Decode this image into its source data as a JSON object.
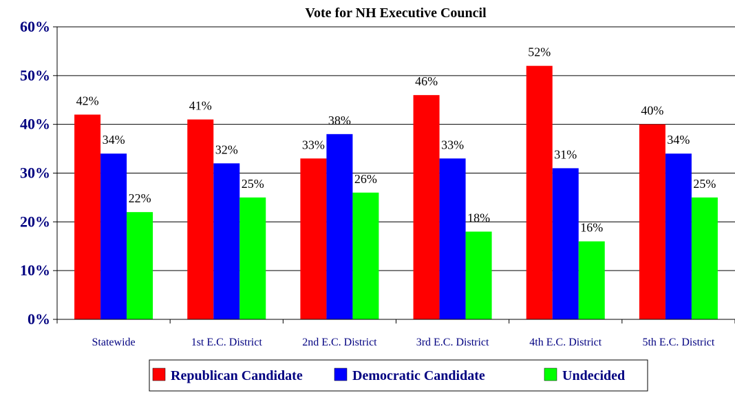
{
  "chart_data": {
    "type": "bar",
    "title": "Vote for NH Executive Council",
    "xlabel": "",
    "ylabel": "",
    "ylim": [
      0,
      60
    ],
    "ytick_values": [
      0,
      10,
      20,
      30,
      40,
      50,
      60
    ],
    "ytick_labels": [
      "0%",
      "10%",
      "20%",
      "30%",
      "40%",
      "50%",
      "60%"
    ],
    "grid": true,
    "legend_position": "bottom",
    "categories": [
      "Statewide",
      "1st E.C. District",
      "2nd E.C. District",
      "3rd E.C. District",
      "4th E.C. District",
      "5th E.C. District"
    ],
    "series": [
      {
        "name": "Republican Candidate",
        "color": "#ff0000",
        "values": [
          42,
          41,
          33,
          46,
          52,
          40
        ],
        "labels": [
          "42%",
          "41%",
          "33%",
          "46%",
          "52%",
          "40%"
        ]
      },
      {
        "name": "Democratic Candidate",
        "color": "#0000ff",
        "values": [
          34,
          32,
          38,
          33,
          31,
          34
        ],
        "labels": [
          "34%",
          "32%",
          "38%",
          "33%",
          "31%",
          "34%"
        ]
      },
      {
        "name": "Undecided",
        "color": "#00ff00",
        "values": [
          22,
          25,
          26,
          18,
          16,
          25
        ],
        "labels": [
          "22%",
          "25%",
          "26%",
          "18%",
          "16%",
          "25%"
        ]
      }
    ]
  }
}
